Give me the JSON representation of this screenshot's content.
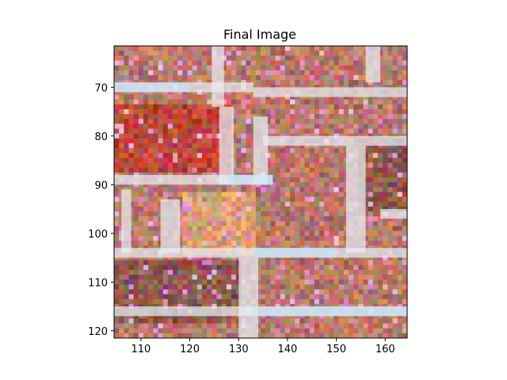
{
  "chart_data": {
    "type": "heatmap",
    "title": "Final Image",
    "xlabel": "",
    "ylabel": "",
    "xlim": [
      104.5,
      164.5
    ],
    "ylim": [
      121.5,
      61.5
    ],
    "xticks": [
      110,
      120,
      130,
      140,
      150,
      160
    ],
    "yticks": [
      70,
      80,
      90,
      100,
      110,
      120
    ],
    "grid": false,
    "legend": "none",
    "image_description": "pixelated RGB photo crop of a brick wall with light mortar lines",
    "palette": {
      "brick": "#b8786a",
      "brick_dark": "#8f5a4e",
      "brick_red": "#c0483a",
      "mortar": "#e8eef5",
      "mortar_blue": "#bfe8ff",
      "noise_warm": "#d9a07a"
    }
  }
}
